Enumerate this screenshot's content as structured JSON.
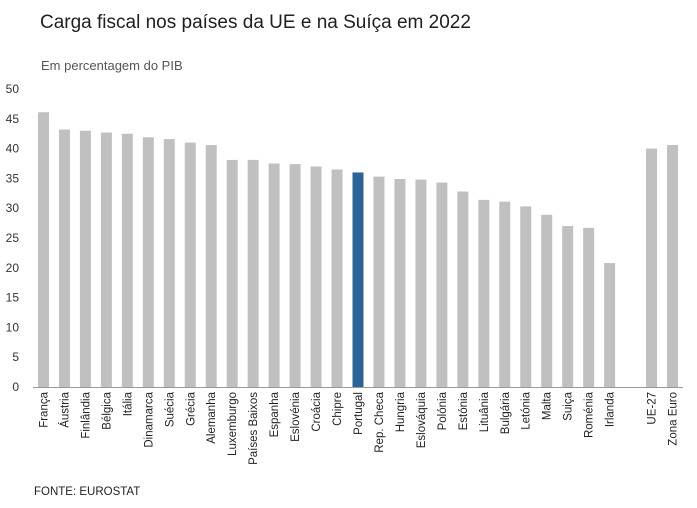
{
  "title": "Carga fiscal nos países da UE e na Suíça em 2022",
  "subtitle": "Em percentagem do PIB",
  "source": "FONTE: EUROSTAT",
  "colors": {
    "default": "#c0c0c0",
    "highlight": "#2c6496",
    "axis": "#9a9a9a"
  },
  "chart_data": {
    "type": "bar",
    "title": "Carga fiscal nos países da UE e na Suíça em 2022",
    "subtitle": "Em percentagem do PIB",
    "xlabel": "",
    "ylabel": "",
    "ylim": [
      0,
      50
    ],
    "yticks": [
      0,
      5,
      10,
      15,
      20,
      25,
      30,
      35,
      40,
      45,
      50
    ],
    "grid": false,
    "highlight": "Portugal",
    "categories": [
      "França",
      "Áustria",
      "Finlândia",
      "Bélgica",
      "Itália",
      "Dinamarca",
      "Suécia",
      "Grécia",
      "Alemanha",
      "Luxemburgo",
      "Países Baixos",
      "Espanha",
      "Eslovénia",
      "Croácia",
      "Chipre",
      "Portugal",
      "Rep. Checa",
      "Hungria",
      "Eslováquia",
      "Polónia",
      "Estónia",
      "Lituânia",
      "Bulgária",
      "Letónia",
      "Malta",
      "Suiça",
      "Roménia",
      "Irlanda",
      "",
      "UE-27",
      "Zona Euro"
    ],
    "values": [
      46.1,
      43.2,
      43.0,
      42.7,
      42.5,
      41.9,
      41.6,
      41.0,
      40.6,
      38.1,
      38.1,
      37.5,
      37.4,
      37.0,
      36.5,
      36.0,
      35.3,
      34.9,
      34.8,
      34.3,
      32.8,
      31.4,
      31.1,
      30.3,
      28.9,
      27.0,
      26.7,
      20.8,
      null,
      40.0,
      40.6
    ]
  }
}
